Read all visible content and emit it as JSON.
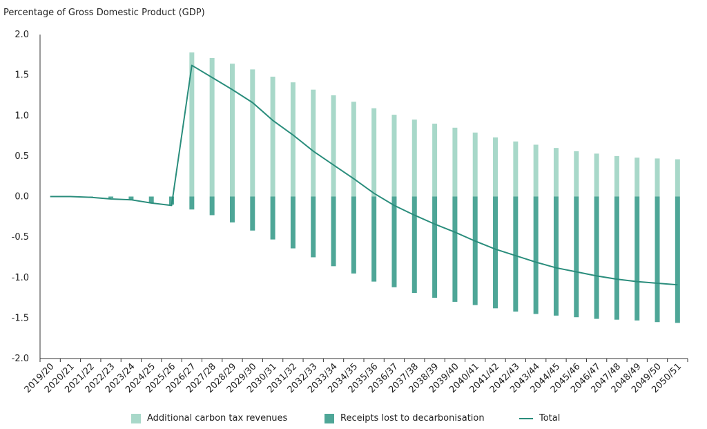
{
  "chart_data": {
    "type": "bar",
    "title": "Percentage of Gross Domestic Product (GDP)",
    "xlabel": "",
    "ylabel": "",
    "ylim": [
      -2.0,
      2.0
    ],
    "yticks": [
      "2.0",
      "1.5",
      "1.0",
      "0.5",
      "0.0",
      "-0.5",
      "-1.0",
      "-1.5",
      "-2.0"
    ],
    "ytick_values": [
      2.0,
      1.5,
      1.0,
      0.5,
      0.0,
      -0.5,
      -1.0,
      -1.5,
      -2.0
    ],
    "grid": false,
    "legend_position": "bottom",
    "categories": [
      "2019/20",
      "2020/21",
      "2021/22",
      "2022/23",
      "2023/24",
      "2024/25",
      "2025/26",
      "2026/27",
      "2027/28",
      "2028/29",
      "2029/30",
      "2030/31",
      "2031/32",
      "2032/33",
      "2033/34",
      "2034/35",
      "2035/36",
      "2036/37",
      "2037/38",
      "2038/39",
      "2039/40",
      "2040/41",
      "2041/42",
      "2042/43",
      "2043/44",
      "2044/45",
      "2045/46",
      "2046/47",
      "2047/48",
      "2048/49",
      "2049/50",
      "2050/51"
    ],
    "series": [
      {
        "name": "Additional carbon tax revenues",
        "kind": "bar",
        "color": "#a8d8c9",
        "values": [
          0,
          0,
          0,
          0,
          0,
          0,
          0,
          1.78,
          1.71,
          1.64,
          1.57,
          1.48,
          1.41,
          1.32,
          1.25,
          1.17,
          1.09,
          1.01,
          0.95,
          0.9,
          0.85,
          0.79,
          0.73,
          0.68,
          0.64,
          0.6,
          0.56,
          0.53,
          0.5,
          0.48,
          0.47,
          0.46
        ]
      },
      {
        "name": "Receipts lost to decarbonisation",
        "kind": "bar",
        "color": "#4ea697",
        "values": [
          0,
          0,
          -0.01,
          -0.02,
          -0.04,
          -0.08,
          -0.1,
          -0.16,
          -0.23,
          -0.32,
          -0.42,
          -0.53,
          -0.64,
          -0.75,
          -0.86,
          -0.95,
          -1.05,
          -1.12,
          -1.19,
          -1.25,
          -1.3,
          -1.34,
          -1.38,
          -1.42,
          -1.45,
          -1.47,
          -1.49,
          -1.51,
          -1.52,
          -1.53,
          -1.55,
          -1.56
        ]
      },
      {
        "name": "Total",
        "kind": "line",
        "color": "#2a8d7c",
        "values": [
          0,
          0,
          -0.01,
          -0.03,
          -0.04,
          -0.08,
          -0.11,
          1.62,
          1.47,
          1.32,
          1.16,
          0.94,
          0.76,
          0.56,
          0.39,
          0.22,
          0.04,
          -0.11,
          -0.23,
          -0.34,
          -0.44,
          -0.55,
          -0.65,
          -0.73,
          -0.81,
          -0.88,
          -0.93,
          -0.98,
          -1.02,
          -1.05,
          -1.07,
          -1.09
        ]
      }
    ]
  }
}
